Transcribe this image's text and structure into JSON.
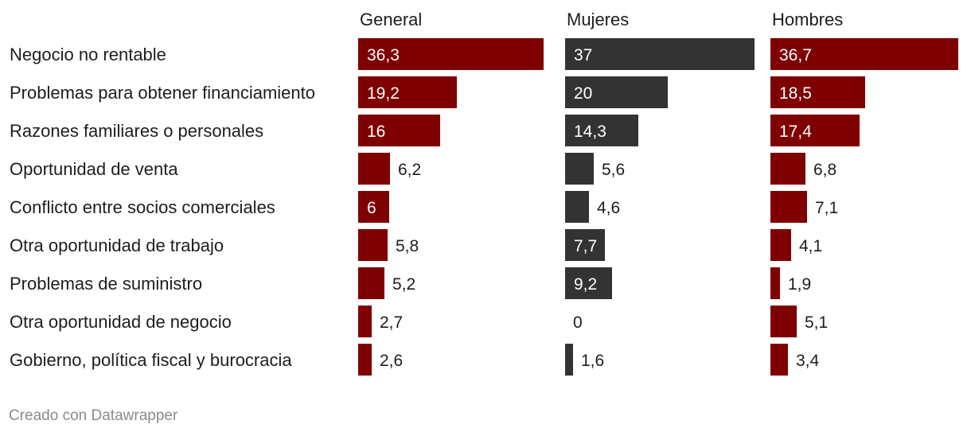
{
  "chart_data": {
    "type": "bar",
    "orientation": "horizontal",
    "layout": "small-multiples",
    "categories": [
      "Negocio no rentable",
      "Problemas para obtener financiamiento",
      "Razones familiares o personales",
      "Oportunidad de venta",
      "Conflicto entre socios comerciales",
      "Otra oportunidad de trabajo",
      "Problemas de suministro",
      "Otra oportunidad de negocio",
      "Gobierno, política fiscal y burocracia"
    ],
    "series": [
      {
        "name": "General",
        "color": "#7f0000",
        "values": [
          36.3,
          19.2,
          16,
          6.2,
          6,
          5.8,
          5.2,
          2.7,
          2.6
        ],
        "labels": [
          "36,3",
          "19,2",
          "16",
          "6,2",
          "6",
          "5,8",
          "5,2",
          "2,7",
          "2,6"
        ]
      },
      {
        "name": "Mujeres",
        "color": "#333333",
        "values": [
          37,
          20,
          14.3,
          5.6,
          4.6,
          7.7,
          9.2,
          0,
          1.6
        ],
        "labels": [
          "37",
          "20",
          "14,3",
          "5,6",
          "4,6",
          "7,7",
          "9,2",
          "0",
          "1,6"
        ]
      },
      {
        "name": "Hombres",
        "color": "#7f0000",
        "values": [
          36.7,
          18.5,
          17.4,
          6.8,
          7.1,
          4.1,
          1.9,
          5.1,
          3.4
        ],
        "labels": [
          "36,7",
          "18,5",
          "17,4",
          "6,8",
          "7,1",
          "4,1",
          "1,9",
          "5,1",
          "3,4"
        ]
      }
    ],
    "xlim": [
      0,
      37
    ],
    "grid": false,
    "legend": "none"
  },
  "footer": {
    "credit": "Creado con Datawrapper"
  }
}
